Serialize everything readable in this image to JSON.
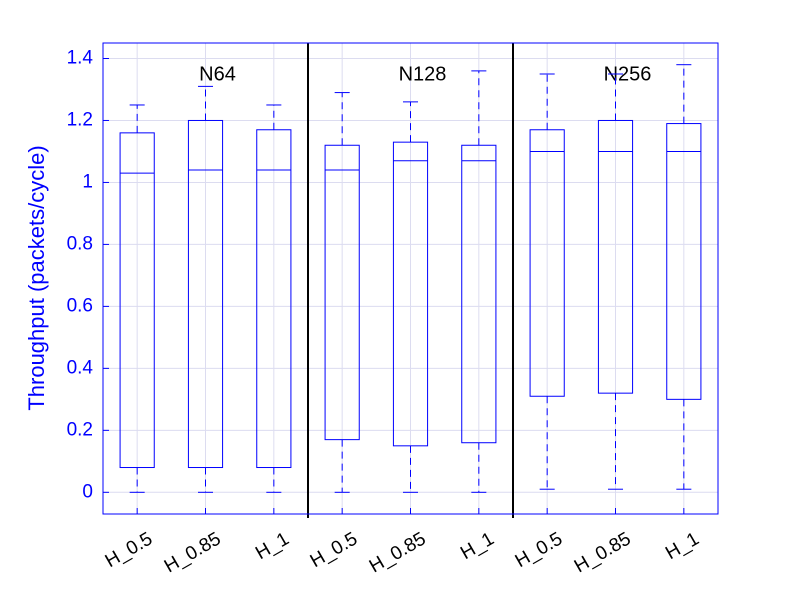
{
  "chart_data": {
    "type": "box",
    "ylabel": "Throughput (packets/cycle)",
    "categories": [
      "H_0.5",
      "H_0.85",
      "H_1",
      "H_0.5",
      "H_0.85",
      "H_1",
      "H_0.5",
      "H_0.85",
      "H_1"
    ],
    "groups": [
      "N64",
      "N128",
      "N256"
    ],
    "color": "#0000ff",
    "boxes": [
      {
        "whislo": 0.0,
        "q1": 0.08,
        "med": 1.03,
        "q3": 1.16,
        "whishi": 1.25
      },
      {
        "whislo": 0.0,
        "q1": 0.08,
        "med": 1.04,
        "q3": 1.2,
        "whishi": 1.31
      },
      {
        "whislo": 0.0,
        "q1": 0.08,
        "med": 1.04,
        "q3": 1.17,
        "whishi": 1.25
      },
      {
        "whislo": 0.0,
        "q1": 0.17,
        "med": 1.04,
        "q3": 1.12,
        "whishi": 1.29
      },
      {
        "whislo": 0.0,
        "q1": 0.15,
        "med": 1.07,
        "q3": 1.13,
        "whishi": 1.26
      },
      {
        "whislo": 0.0,
        "q1": 0.16,
        "med": 1.07,
        "q3": 1.12,
        "whishi": 1.36
      },
      {
        "whislo": 0.01,
        "q1": 0.31,
        "med": 1.1,
        "q3": 1.17,
        "whishi": 1.35
      },
      {
        "whislo": 0.01,
        "q1": 0.32,
        "med": 1.1,
        "q3": 1.2,
        "whishi": 1.35
      },
      {
        "whislo": 0.01,
        "q1": 0.3,
        "med": 1.1,
        "q3": 1.19,
        "whishi": 1.38
      }
    ],
    "ylim": [
      -0.07,
      1.45
    ],
    "yticks": [
      0,
      0.2,
      0.4,
      0.6,
      0.8,
      1,
      1.2,
      1.4
    ],
    "grid": true
  }
}
